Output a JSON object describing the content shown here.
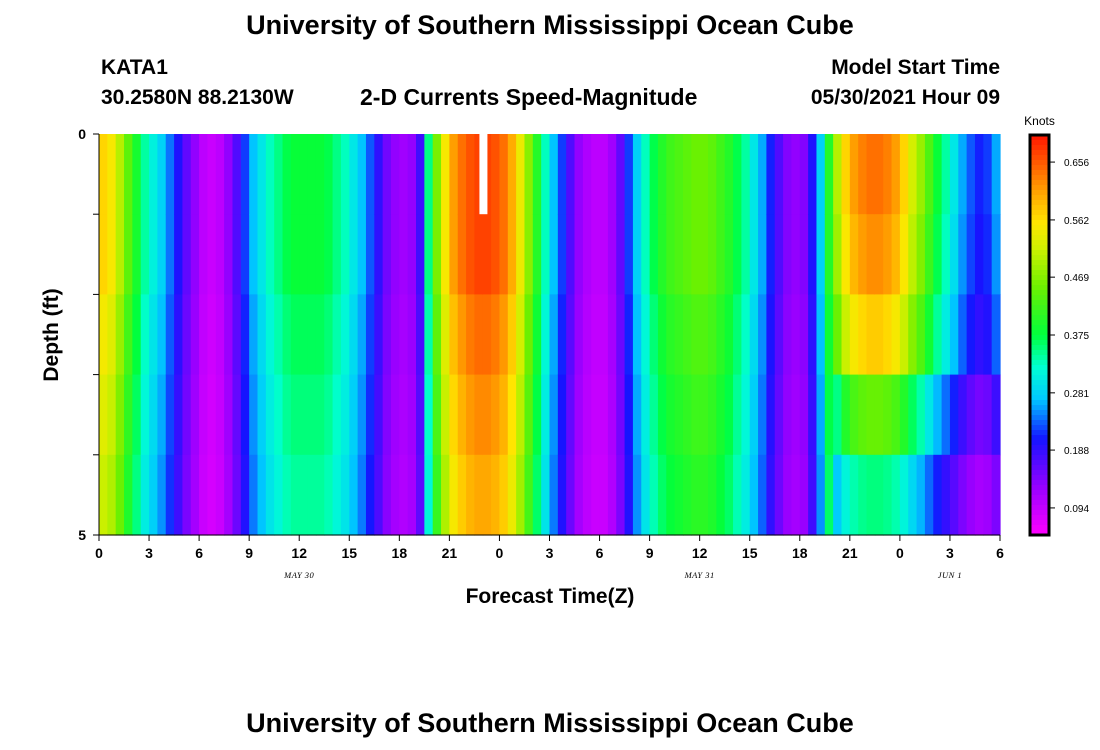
{
  "header": {
    "title": "University of Southern Mississippi Ocean Cube",
    "station": "KATA1",
    "coords": "30.2580N  88.2130W",
    "plot_title": "2-D Currents Speed-Magnitude",
    "model_start_label": "Model Start Time",
    "model_start_value": "05/30/2021 Hour 09"
  },
  "footer": {
    "title": "University of Southern Mississippi Ocean Cube"
  },
  "chart_data": {
    "type": "heatmap",
    "title": "2-D Currents Speed-Magnitude",
    "xlabel": "Forecast Time(Z)",
    "ylabel": "Depth (ft)",
    "units": "Knots",
    "x_tick_labels": [
      "0",
      "3",
      "6",
      "9",
      "12",
      "15",
      "18",
      "21",
      "0",
      "3",
      "6",
      "9",
      "12",
      "15",
      "18",
      "21",
      "0",
      "3",
      "6"
    ],
    "date_labels": [
      "MAY 30",
      "MAY 31",
      "JUN 1"
    ],
    "date_label_hours": [
      12,
      36,
      51
    ],
    "y_tick_labels": [
      "0",
      "5"
    ],
    "ylim": [
      0,
      5
    ],
    "x_range_hours": [
      0,
      54
    ],
    "colorbar_ticks": [
      "0.656",
      "0.562",
      "0.469",
      "0.375",
      "0.281",
      "0.188",
      "0.094"
    ],
    "colorbar_range": [
      0.05,
      0.7
    ],
    "depth_layers": 5,
    "hours": [
      0,
      0.5,
      1,
      1.5,
      2,
      2.5,
      3,
      3.5,
      4,
      4.5,
      5,
      5.5,
      6,
      6.5,
      7,
      7.5,
      8,
      8.5,
      9,
      9.5,
      10,
      10.5,
      11,
      11.5,
      12,
      12.5,
      13,
      13.5,
      14,
      14.5,
      15,
      15.5,
      16,
      16.5,
      17,
      17.5,
      18,
      18.5,
      19,
      19.5,
      20,
      20.5,
      21,
      21.5,
      22,
      22.5,
      23,
      23.5,
      24,
      24.5,
      25,
      25.5,
      26,
      26.5,
      27,
      27.5,
      28,
      28.5,
      29,
      29.5,
      30,
      30.5,
      31,
      31.5,
      32,
      32.5,
      33,
      33.5,
      34,
      34.5,
      35,
      35.5,
      36,
      36.5,
      37,
      37.5,
      38,
      38.5,
      39,
      39.5,
      40,
      40.5,
      41,
      41.5,
      42,
      42.5,
      43,
      43.5,
      44,
      44.5,
      45,
      45.5,
      46,
      46.5,
      47,
      47.5,
      48,
      48.5,
      49,
      49.5,
      50,
      50.5,
      51,
      51.5,
      52,
      52.5,
      53,
      53.5
    ],
    "speed_profile": [
      0.57,
      0.55,
      0.5,
      0.44,
      0.39,
      0.34,
      0.31,
      0.28,
      0.24,
      0.2,
      0.16,
      0.13,
      0.1,
      0.09,
      0.1,
      0.13,
      0.17,
      0.22,
      0.27,
      0.3,
      0.33,
      0.35,
      0.37,
      0.38,
      0.38,
      0.38,
      0.38,
      0.37,
      0.35,
      0.33,
      0.3,
      0.27,
      0.23,
      0.19,
      0.15,
      0.13,
      0.12,
      0.13,
      0.18,
      0.35,
      0.46,
      0.55,
      0.61,
      0.64,
      0.66,
      0.67,
      0.67,
      0.66,
      0.64,
      0.6,
      0.54,
      0.47,
      0.4,
      0.33,
      0.27,
      0.22,
      0.17,
      0.13,
      0.11,
      0.1,
      0.1,
      0.12,
      0.16,
      0.22,
      0.28,
      0.33,
      0.37,
      0.4,
      0.42,
      0.43,
      0.44,
      0.45,
      0.45,
      0.44,
      0.42,
      0.4,
      0.37,
      0.34,
      0.3,
      0.26,
      0.21,
      0.17,
      0.14,
      0.13,
      0.14,
      0.2,
      0.28,
      0.4,
      0.5,
      0.57,
      0.61,
      0.63,
      0.64,
      0.64,
      0.63,
      0.61,
      0.57,
      0.52,
      0.48,
      0.43,
      0.38,
      0.34,
      0.3,
      0.26,
      0.23,
      0.21,
      0.22,
      0.26
    ],
    "layer_factors": [
      1.0,
      1.0,
      0.96,
      0.93,
      0.9
    ],
    "late_layer_factors": [
      1.0,
      0.97,
      0.9,
      0.7,
      0.55
    ]
  },
  "colors": {
    "background": "#ffffff",
    "text": "#000000",
    "gap_marker": "#ffffff"
  }
}
